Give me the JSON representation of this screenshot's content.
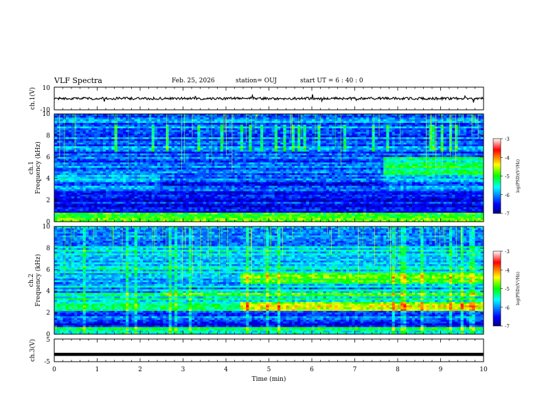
{
  "header": {
    "title": "VLF Spectra",
    "date": "Feb. 25, 2026",
    "station": "station= OUJ",
    "start": "start  UT  =   6  : 40 : 0"
  },
  "chart_data": [
    {
      "type": "line",
      "panel": "ch1-waveform",
      "ylabel": "ch.1(V)",
      "y_ticks": [
        "10",
        "-10"
      ],
      "ylim": [
        -10,
        10
      ],
      "xlim": [
        0,
        10
      ],
      "baseline": 0,
      "amplitude": 1.1,
      "color": "#000000"
    },
    {
      "type": "heatmap",
      "panel": "ch1-spectrogram",
      "ylabel": "ch.1\nFrequency (kHz)",
      "ylabel_lines": [
        "ch.1",
        "Frequency (kHz)"
      ],
      "y_ticks": [
        "0",
        "2",
        "4",
        "6",
        "8",
        "10"
      ],
      "ylim": [
        0,
        10
      ],
      "xlim": [
        0,
        10
      ],
      "colorbar": {
        "label": "log(PSD)(V²/Hz)",
        "ticks": [
          "-3",
          "-4",
          "-5",
          "-6",
          "-7"
        ],
        "range": [
          -7,
          -3
        ]
      },
      "breaks_min": [
        2.45,
        7.7
      ]
    },
    {
      "type": "heatmap",
      "panel": "ch2-spectrogram",
      "ylabel": "ch.2\nFrequency (kHz)",
      "ylabel_lines": [
        "ch.2",
        "Frequency (kHz)"
      ],
      "y_ticks": [
        "0",
        "2",
        "4",
        "6",
        "8",
        "10"
      ],
      "ylim": [
        0,
        10
      ],
      "xlim": [
        0,
        10
      ],
      "colorbar": {
        "label": "log(PSD)(V²/Hz)",
        "ticks": [
          "-3",
          "-4",
          "-5",
          "-6",
          "-7"
        ],
        "range": [
          -7,
          -3
        ]
      },
      "breaks_min": [
        2.45,
        4.35,
        7.7
      ]
    },
    {
      "type": "line",
      "panel": "ch3-waveform",
      "ylabel": "ch.3(V)",
      "y_ticks": [
        "5",
        "-5"
      ],
      "ylim": [
        -5,
        5
      ],
      "xlim": [
        0,
        10
      ],
      "baseline": -1.8,
      "color": "#000000"
    }
  ],
  "xaxis": {
    "label": "Time (min)",
    "ticks": [
      "0",
      "1",
      "2",
      "3",
      "4",
      "5",
      "6",
      "7",
      "8",
      "9",
      "10"
    ]
  }
}
